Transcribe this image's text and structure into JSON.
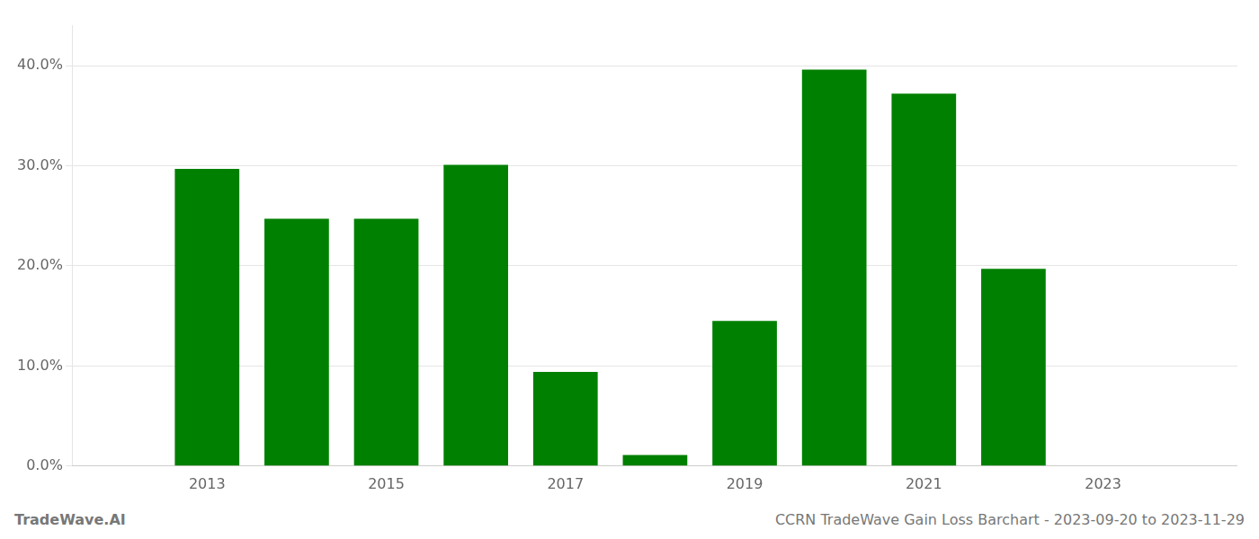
{
  "chart_data": {
    "type": "bar",
    "x": [
      2013,
      2014,
      2015,
      2016,
      2017,
      2018,
      2019,
      2020,
      2021,
      2022,
      2023
    ],
    "values": [
      0.297,
      0.247,
      0.247,
      0.301,
      0.094,
      0.011,
      0.145,
      0.396,
      0.372,
      0.197,
      0.0
    ],
    "color": "#008000",
    "xlim": [
      2011.5,
      2024.5
    ],
    "xticks": [
      2013,
      2015,
      2017,
      2019,
      2021,
      2023
    ],
    "ylim": [
      0.0,
      0.44
    ],
    "yticks": [
      {
        "value": 0.0,
        "label": "0.0%"
      },
      {
        "value": 0.1,
        "label": "10.0%"
      },
      {
        "value": 0.2,
        "label": "20.0%"
      },
      {
        "value": 0.3,
        "label": "30.0%"
      },
      {
        "value": 0.4,
        "label": "40.0%"
      }
    ],
    "grid": "y",
    "annotations": [
      "TradeWave.AI",
      "CCRN TradeWave Gain Loss Barchart - 2023-09-20 to 2023-11-29"
    ]
  }
}
